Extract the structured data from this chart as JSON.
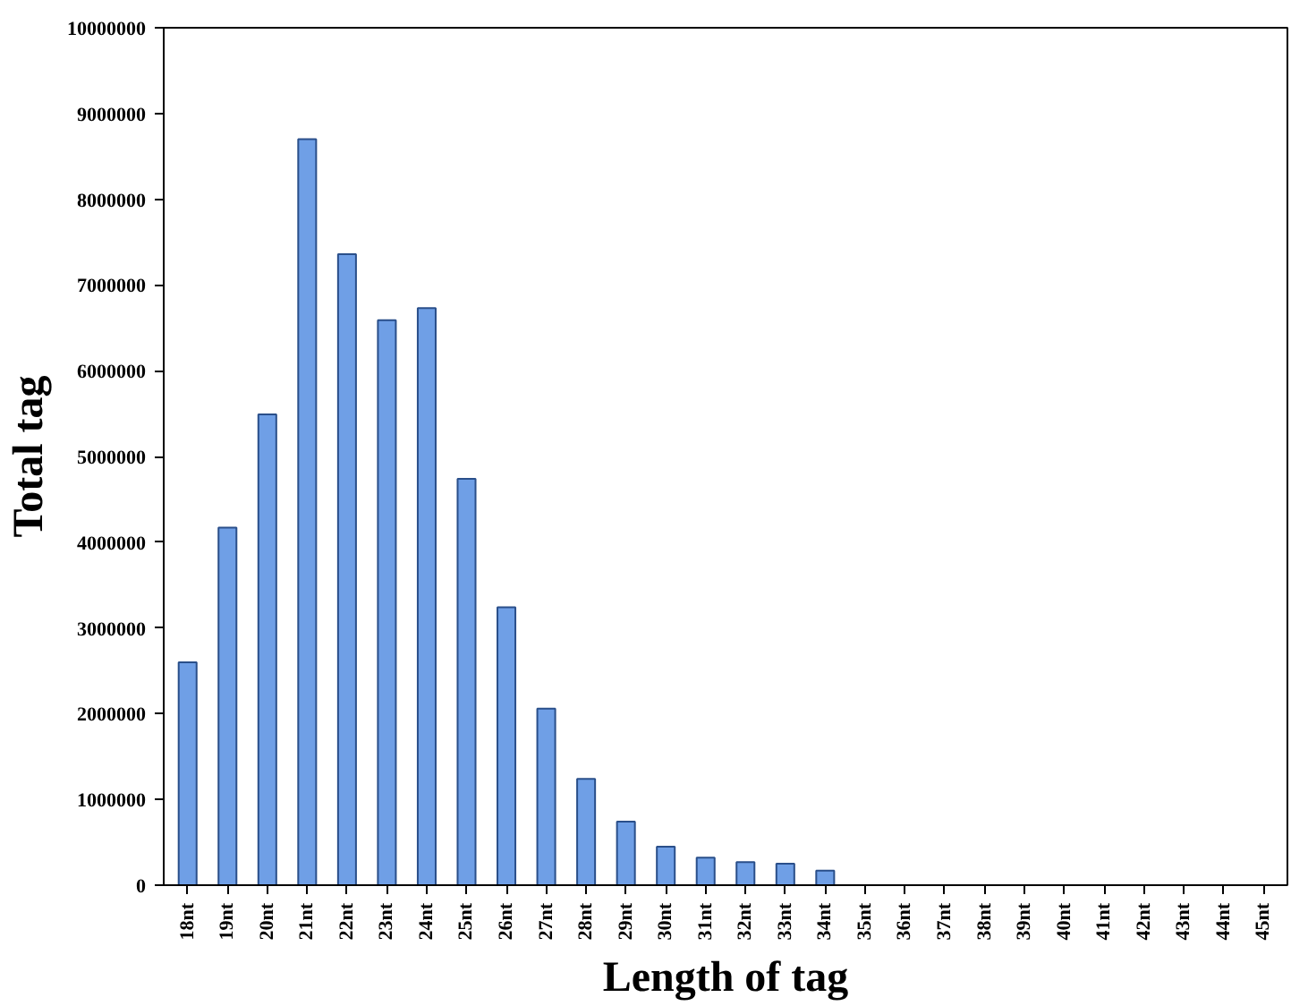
{
  "chart_data": {
    "type": "bar",
    "xlabel": "Length of tag",
    "ylabel": "Total tag",
    "categories": [
      "18nt",
      "19nt",
      "20nt",
      "21nt",
      "22nt",
      "23nt",
      "24nt",
      "25nt",
      "26nt",
      "27nt",
      "28nt",
      "29nt",
      "30nt",
      "31nt",
      "32nt",
      "33nt",
      "34nt",
      "35nt",
      "36nt",
      "37nt",
      "38nt",
      "39nt",
      "40nt",
      "41nt",
      "42nt",
      "43nt",
      "44nt",
      "45nt"
    ],
    "values": [
      2600000,
      4170000,
      5490000,
      8700000,
      7360000,
      6590000,
      6730000,
      4740000,
      3240000,
      2060000,
      1240000,
      740000,
      450000,
      320000,
      270000,
      250000,
      170000,
      null,
      null,
      null,
      null,
      null,
      null,
      null,
      null,
      null,
      null,
      null
    ],
    "color": "#6f9fe6",
    "ylim": [
      0,
      10000000
    ],
    "yticks": [
      0,
      1000000,
      2000000,
      3000000,
      4000000,
      5000000,
      6000000,
      7000000,
      8000000,
      9000000,
      10000000
    ],
    "grid": false
  }
}
